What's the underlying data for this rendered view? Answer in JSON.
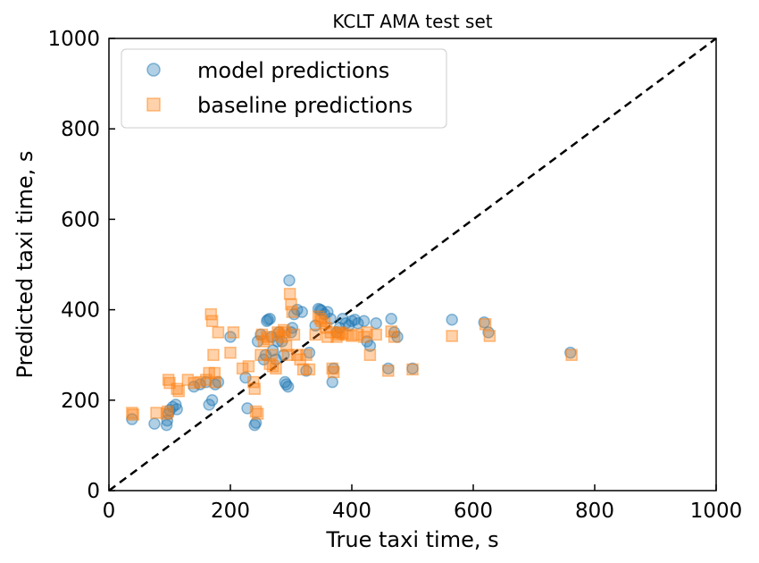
{
  "chart_data": {
    "type": "scatter",
    "title": "KCLT AMA test set",
    "xlabel": "True taxi time, s",
    "ylabel": "Predicted taxi time, s",
    "xlim": [
      0,
      1000
    ],
    "ylim": [
      0,
      1000
    ],
    "xticks": [
      "0",
      "200",
      "400",
      "600",
      "800",
      "1000"
    ],
    "yticks": [
      "0",
      "200",
      "400",
      "600",
      "800",
      "1000"
    ],
    "grid": false,
    "legend_position": "top-left",
    "reference_line": {
      "style": "dashed",
      "color": "#000000",
      "from": [
        0,
        0
      ],
      "to": [
        1000,
        1000
      ]
    },
    "series": [
      {
        "name": "model predictions",
        "marker": "circle",
        "color": "#1f77b4",
        "points": [
          [
            38,
            158
          ],
          [
            75,
            148
          ],
          [
            95,
            145
          ],
          [
            96,
            155
          ],
          [
            98,
            170
          ],
          [
            100,
            178
          ],
          [
            105,
            185
          ],
          [
            110,
            190
          ],
          [
            112,
            180
          ],
          [
            140,
            230
          ],
          [
            150,
            235
          ],
          [
            160,
            240
          ],
          [
            165,
            190
          ],
          [
            170,
            200
          ],
          [
            175,
            235
          ],
          [
            180,
            240
          ],
          [
            200,
            340
          ],
          [
            225,
            250
          ],
          [
            228,
            182
          ],
          [
            240,
            145
          ],
          [
            242,
            150
          ],
          [
            245,
            330
          ],
          [
            250,
            345
          ],
          [
            255,
            290
          ],
          [
            258,
            300
          ],
          [
            260,
            375
          ],
          [
            262,
            378
          ],
          [
            265,
            380
          ],
          [
            268,
            340
          ],
          [
            270,
            310
          ],
          [
            275,
            290
          ],
          [
            278,
            330
          ],
          [
            280,
            350
          ],
          [
            285,
            330
          ],
          [
            288,
            300
          ],
          [
            290,
            240
          ],
          [
            292,
            235
          ],
          [
            295,
            230
          ],
          [
            297,
            465
          ],
          [
            300,
            350
          ],
          [
            302,
            360
          ],
          [
            305,
            390
          ],
          [
            310,
            400
          ],
          [
            318,
            395
          ],
          [
            325,
            265
          ],
          [
            330,
            305
          ],
          [
            340,
            365
          ],
          [
            345,
            402
          ],
          [
            348,
            400
          ],
          [
            350,
            398
          ],
          [
            355,
            390
          ],
          [
            360,
            395
          ],
          [
            365,
            380
          ],
          [
            368,
            240
          ],
          [
            370,
            270
          ],
          [
            375,
            350
          ],
          [
            380,
            360
          ],
          [
            385,
            380
          ],
          [
            390,
            370
          ],
          [
            395,
            365
          ],
          [
            400,
            375
          ],
          [
            405,
            378
          ],
          [
            410,
            370
          ],
          [
            420,
            375
          ],
          [
            425,
            330
          ],
          [
            430,
            320
          ],
          [
            440,
            370
          ],
          [
            460,
            270
          ],
          [
            465,
            380
          ],
          [
            470,
            350
          ],
          [
            475,
            340
          ],
          [
            500,
            270
          ],
          [
            565,
            378
          ],
          [
            618,
            372
          ],
          [
            625,
            350
          ],
          [
            760,
            305
          ]
        ]
      },
      {
        "name": "baseline predictions",
        "marker": "square",
        "color": "#ff7f0e",
        "points": [
          [
            38,
            172
          ],
          [
            40,
            168
          ],
          [
            78,
            172
          ],
          [
            95,
            170
          ],
          [
            97,
            175
          ],
          [
            98,
            245
          ],
          [
            100,
            238
          ],
          [
            112,
            225
          ],
          [
            115,
            220
          ],
          [
            130,
            245
          ],
          [
            140,
            238
          ],
          [
            150,
            240
          ],
          [
            160,
            245
          ],
          [
            165,
            260
          ],
          [
            168,
            390
          ],
          [
            170,
            375
          ],
          [
            172,
            300
          ],
          [
            174,
            260
          ],
          [
            175,
            240
          ],
          [
            180,
            350
          ],
          [
            200,
            305
          ],
          [
            205,
            350
          ],
          [
            220,
            270
          ],
          [
            230,
            275
          ],
          [
            238,
            240
          ],
          [
            240,
            225
          ],
          [
            242,
            175
          ],
          [
            245,
            170
          ],
          [
            250,
            300
          ],
          [
            252,
            345
          ],
          [
            255,
            330
          ],
          [
            260,
            340
          ],
          [
            262,
            335
          ],
          [
            265,
            280
          ],
          [
            268,
            300
          ],
          [
            270,
            275
          ],
          [
            275,
            270
          ],
          [
            278,
            350
          ],
          [
            280,
            345
          ],
          [
            285,
            340
          ],
          [
            288,
            355
          ],
          [
            290,
            350
          ],
          [
            292,
            320
          ],
          [
            295,
            300
          ],
          [
            298,
            435
          ],
          [
            300,
            412
          ],
          [
            302,
            395
          ],
          [
            305,
            345
          ],
          [
            310,
            300
          ],
          [
            315,
            290
          ],
          [
            320,
            268
          ],
          [
            325,
            300
          ],
          [
            330,
            268
          ],
          [
            340,
            345
          ],
          [
            345,
            385
          ],
          [
            348,
            380
          ],
          [
            350,
            375
          ],
          [
            355,
            370
          ],
          [
            358,
            360
          ],
          [
            360,
            340
          ],
          [
            365,
            350
          ],
          [
            368,
            270
          ],
          [
            370,
            262
          ],
          [
            375,
            340
          ],
          [
            378,
            345
          ],
          [
            380,
            350
          ],
          [
            385,
            348
          ],
          [
            390,
            345
          ],
          [
            400,
            342
          ],
          [
            410,
            345
          ],
          [
            420,
            340
          ],
          [
            425,
            350
          ],
          [
            430,
            300
          ],
          [
            440,
            345
          ],
          [
            460,
            265
          ],
          [
            465,
            352
          ],
          [
            470,
            340
          ],
          [
            500,
            268
          ],
          [
            565,
            342
          ],
          [
            620,
            368
          ],
          [
            627,
            342
          ],
          [
            762,
            300
          ]
        ]
      }
    ]
  }
}
